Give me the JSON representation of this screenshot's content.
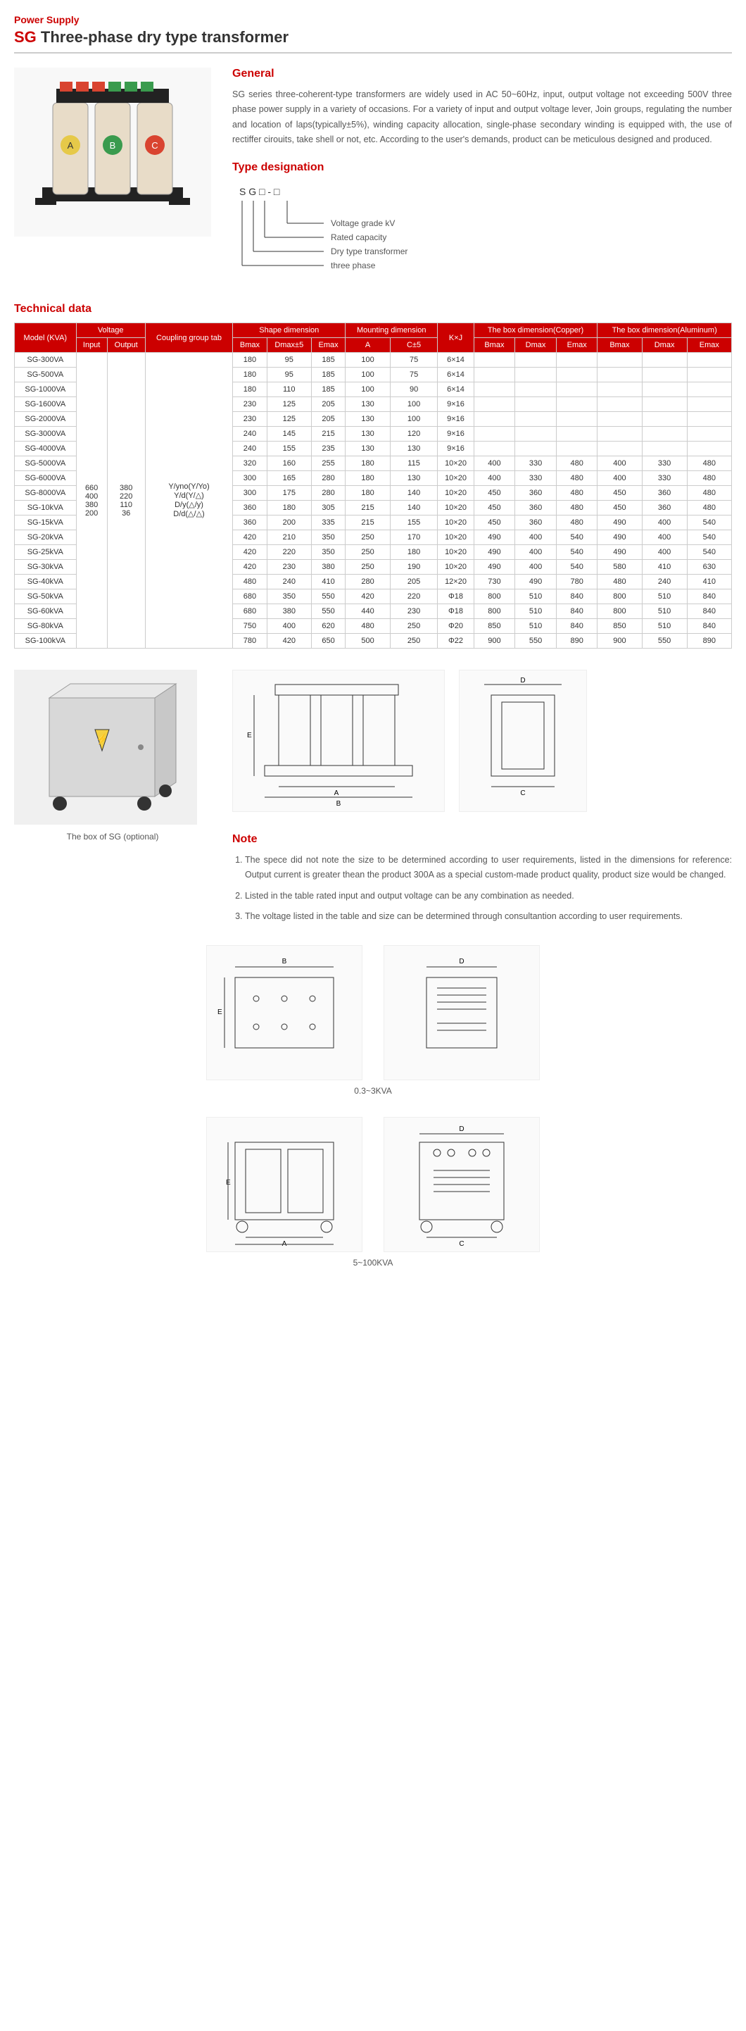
{
  "category": "Power Supply",
  "title_prefix": "SG",
  "title_rest": "Three-phase  dry type transformer",
  "general": {
    "heading": "General",
    "text": "SG series three-coherent-type transformers are widely used in AC 50~60Hz, input, output voltage not exceeding 500V three phase power supply in a variety of occasions. For a variety of input and output voltage lever, Join groups, regulating the number and location of laps(typically±5%), winding capacity allocation, single-phase secondary winding is equipped with, the use of rectiffer cirouits, take shell or not, etc. According to the user's demands, product can be meticulous designed and produced."
  },
  "type_designation": {
    "heading": "Type designation",
    "code": "S  G □ - □",
    "labels": [
      "Voltage grade kV",
      "Rated capacity",
      "Dry type transformer",
      "three phase"
    ]
  },
  "tech_heading": "Technical data",
  "table": {
    "header_row1": [
      "Model (KVA)",
      "Voltage",
      "Coupling group tab",
      "Shape dimension",
      "Mounting dimension",
      "K×J",
      "The box dimension(Copper)",
      "The box dimension(Aluminum)"
    ],
    "header_voltage": [
      "Input",
      "Output"
    ],
    "header_shape": [
      "Bmax",
      "Dmax±5",
      "Emax"
    ],
    "header_mount": [
      "A",
      "C±5"
    ],
    "header_box": [
      "Bmax",
      "Dmax",
      "Emax"
    ],
    "voltage_inputs": [
      "660",
      "400",
      "380",
      "200"
    ],
    "voltage_outputs": [
      "380",
      "220",
      "110",
      "36"
    ],
    "coupling": [
      "Y/yno(Y/Yo)",
      "Y/d(Y/△)",
      "D/y(△/y)",
      "D/d(△/△)"
    ],
    "rows": [
      {
        "model": "SG-300VA",
        "shape": [
          "180",
          "95",
          "185"
        ],
        "mount": [
          "100",
          "75"
        ],
        "kj": "6×14",
        "cu": [
          "",
          "",
          ""
        ],
        "al": [
          "",
          "",
          ""
        ]
      },
      {
        "model": "SG-500VA",
        "shape": [
          "180",
          "95",
          "185"
        ],
        "mount": [
          "100",
          "75"
        ],
        "kj": "6×14",
        "cu": [
          "",
          "",
          ""
        ],
        "al": [
          "",
          "",
          ""
        ]
      },
      {
        "model": "SG-1000VA",
        "shape": [
          "180",
          "110",
          "185"
        ],
        "mount": [
          "100",
          "90"
        ],
        "kj": "6×14",
        "cu": [
          "",
          "",
          ""
        ],
        "al": [
          "",
          "",
          ""
        ]
      },
      {
        "model": "SG-1600VA",
        "shape": [
          "230",
          "125",
          "205"
        ],
        "mount": [
          "130",
          "100"
        ],
        "kj": "9×16",
        "cu": [
          "",
          "",
          ""
        ],
        "al": [
          "",
          "",
          ""
        ]
      },
      {
        "model": "SG-2000VA",
        "shape": [
          "230",
          "125",
          "205"
        ],
        "mount": [
          "130",
          "100"
        ],
        "kj": "9×16",
        "cu": [
          "",
          "",
          ""
        ],
        "al": [
          "",
          "",
          ""
        ]
      },
      {
        "model": "SG-3000VA",
        "shape": [
          "240",
          "145",
          "215"
        ],
        "mount": [
          "130",
          "120"
        ],
        "kj": "9×16",
        "cu": [
          "",
          "",
          ""
        ],
        "al": [
          "",
          "",
          ""
        ]
      },
      {
        "model": "SG-4000VA",
        "shape": [
          "240",
          "155",
          "235"
        ],
        "mount": [
          "130",
          "130"
        ],
        "kj": "9×16",
        "cu": [
          "",
          "",
          ""
        ],
        "al": [
          "",
          "",
          ""
        ]
      },
      {
        "model": "SG-5000VA",
        "shape": [
          "320",
          "160",
          "255"
        ],
        "mount": [
          "180",
          "115"
        ],
        "kj": "10×20",
        "cu": [
          "400",
          "330",
          "480"
        ],
        "al": [
          "400",
          "330",
          "480"
        ]
      },
      {
        "model": "SG-6000VA",
        "shape": [
          "300",
          "165",
          "280"
        ],
        "mount": [
          "180",
          "130"
        ],
        "kj": "10×20",
        "cu": [
          "400",
          "330",
          "480"
        ],
        "al": [
          "400",
          "330",
          "480"
        ]
      },
      {
        "model": "SG-8000VA",
        "shape": [
          "300",
          "175",
          "280"
        ],
        "mount": [
          "180",
          "140"
        ],
        "kj": "10×20",
        "cu": [
          "450",
          "360",
          "480"
        ],
        "al": [
          "450",
          "360",
          "480"
        ]
      },
      {
        "model": "SG-10kVA",
        "shape": [
          "360",
          "180",
          "305"
        ],
        "mount": [
          "215",
          "140"
        ],
        "kj": "10×20",
        "cu": [
          "450",
          "360",
          "480"
        ],
        "al": [
          "450",
          "360",
          "480"
        ]
      },
      {
        "model": "SG-15kVA",
        "shape": [
          "360",
          "200",
          "335"
        ],
        "mount": [
          "215",
          "155"
        ],
        "kj": "10×20",
        "cu": [
          "450",
          "360",
          "480"
        ],
        "al": [
          "490",
          "400",
          "540"
        ]
      },
      {
        "model": "SG-20kVA",
        "shape": [
          "420",
          "210",
          "350"
        ],
        "mount": [
          "250",
          "170"
        ],
        "kj": "10×20",
        "cu": [
          "490",
          "400",
          "540"
        ],
        "al": [
          "490",
          "400",
          "540"
        ]
      },
      {
        "model": "SG-25kVA",
        "shape": [
          "420",
          "220",
          "350"
        ],
        "mount": [
          "250",
          "180"
        ],
        "kj": "10×20",
        "cu": [
          "490",
          "400",
          "540"
        ],
        "al": [
          "490",
          "400",
          "540"
        ]
      },
      {
        "model": "SG-30kVA",
        "shape": [
          "420",
          "230",
          "380"
        ],
        "mount": [
          "250",
          "190"
        ],
        "kj": "10×20",
        "cu": [
          "490",
          "400",
          "540"
        ],
        "al": [
          "580",
          "410",
          "630"
        ]
      },
      {
        "model": "SG-40kVA",
        "shape": [
          "480",
          "240",
          "410"
        ],
        "mount": [
          "280",
          "205"
        ],
        "kj": "12×20",
        "cu": [
          "730",
          "490",
          "780"
        ],
        "al": [
          "480",
          "240",
          "410"
        ]
      },
      {
        "model": "SG-50kVA",
        "shape": [
          "680",
          "350",
          "550"
        ],
        "mount": [
          "420",
          "220"
        ],
        "kj": "Φ18",
        "cu": [
          "800",
          "510",
          "840"
        ],
        "al": [
          "800",
          "510",
          "840"
        ]
      },
      {
        "model": "SG-60kVA",
        "shape": [
          "680",
          "380",
          "550"
        ],
        "mount": [
          "440",
          "230"
        ],
        "kj": "Φ18",
        "cu": [
          "800",
          "510",
          "840"
        ],
        "al": [
          "800",
          "510",
          "840"
        ]
      },
      {
        "model": "SG-80kVA",
        "shape": [
          "750",
          "400",
          "620"
        ],
        "mount": [
          "480",
          "250"
        ],
        "kj": "Φ20",
        "cu": [
          "850",
          "510",
          "840"
        ],
        "al": [
          "850",
          "510",
          "840"
        ]
      },
      {
        "model": "SG-100kVA",
        "shape": [
          "780",
          "420",
          "650"
        ],
        "mount": [
          "500",
          "250"
        ],
        "kj": "Φ22",
        "cu": [
          "900",
          "550",
          "890"
        ],
        "al": [
          "900",
          "550",
          "890"
        ]
      }
    ]
  },
  "box_caption": "The box of SG (optional)",
  "note": {
    "heading": "Note",
    "items": [
      "The spece did not note the size to be determined according to user requirements, listed in the dimensions for reference: Output current is greater thean the product 300A as a special custom-made product quality, product size would be changed.",
      "Listed in the table rated input and output voltage can be any combination as needed.",
      "The voltage listed in the table and size can be determined through consultantion according to user requirements."
    ]
  },
  "dim_labels": [
    "0.3~3KVA",
    "5~100KVA"
  ],
  "colors": {
    "accent": "#cc0000",
    "border": "#cccccc",
    "text": "#333333",
    "muted": "#555555"
  }
}
